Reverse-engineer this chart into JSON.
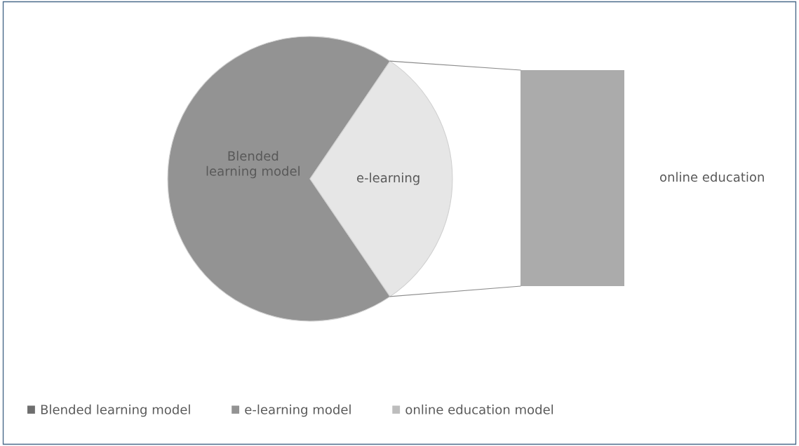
{
  "chart_data": [
    {
      "type": "pie",
      "categories": [
        "Blended learning model",
        "e-learning"
      ],
      "values": [
        69,
        31
      ],
      "colors": [
        "#939393",
        "#e6e6e6"
      ]
    },
    {
      "type": "other",
      "annotations": [
        "online education"
      ],
      "series": [
        {
          "name": "Blended learning model",
          "color": "#6e6e6e"
        },
        {
          "name": "e-learning model",
          "color": "#939393"
        },
        {
          "name": "online education model",
          "color": "#bdbdbd"
        }
      ],
      "legend": "bottom"
    }
  ]
}
